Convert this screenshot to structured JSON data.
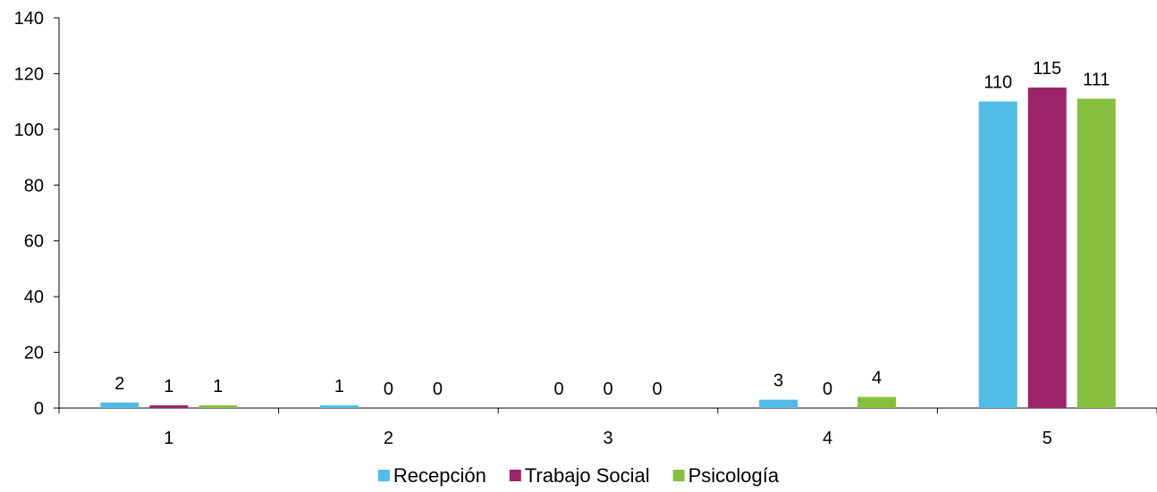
{
  "chart_data": {
    "type": "bar",
    "categories": [
      "1",
      "2",
      "3",
      "4",
      "5"
    ],
    "series": [
      {
        "name": "Recepción",
        "color": "#4FBDE6",
        "values": [
          2,
          1,
          0,
          3,
          110
        ]
      },
      {
        "name": "Trabajo Social",
        "color": "#9D2468",
        "values": [
          1,
          0,
          0,
          0,
          115
        ]
      },
      {
        "name": "Psicología",
        "color": "#86BF40",
        "values": [
          1,
          0,
          0,
          4,
          111
        ]
      }
    ],
    "ylim": [
      0,
      140
    ],
    "yticks": [
      0,
      20,
      40,
      60,
      80,
      100,
      120,
      140
    ],
    "grid": false,
    "legend_position": "bottom",
    "data_labels": true
  }
}
